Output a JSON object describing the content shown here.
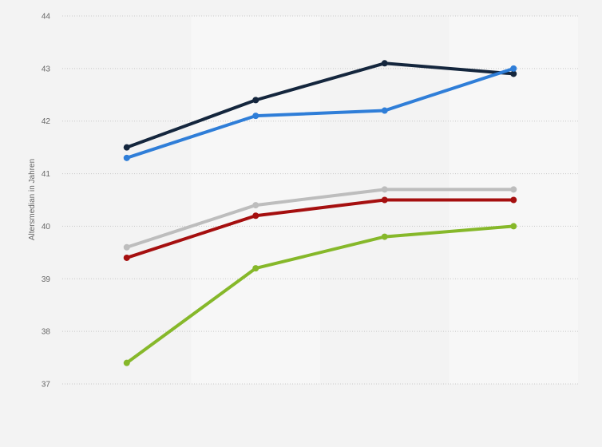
{
  "chart_data": {
    "type": "line",
    "title": "",
    "xlabel": "",
    "ylabel": "Altersmedian in Jahren",
    "ylim": [
      37,
      44
    ],
    "yticks": [
      37,
      38,
      39,
      40,
      41,
      42,
      43,
      44
    ],
    "categories": [
      "",
      "",
      "",
      ""
    ],
    "grid": true,
    "series": [
      {
        "color": "#14263d",
        "values": [
          41.5,
          42.4,
          43.1,
          42.9
        ]
      },
      {
        "color": "#2f7ed8",
        "values": [
          41.3,
          42.1,
          42.2,
          43.0
        ]
      },
      {
        "color": "#bdbdbd",
        "values": [
          39.6,
          40.4,
          40.7,
          40.7
        ]
      },
      {
        "color": "#a50f0f",
        "values": [
          39.4,
          40.2,
          40.5,
          40.5
        ]
      },
      {
        "color": "#86b82a",
        "values": [
          37.4,
          39.2,
          39.8,
          40.0
        ]
      }
    ]
  }
}
